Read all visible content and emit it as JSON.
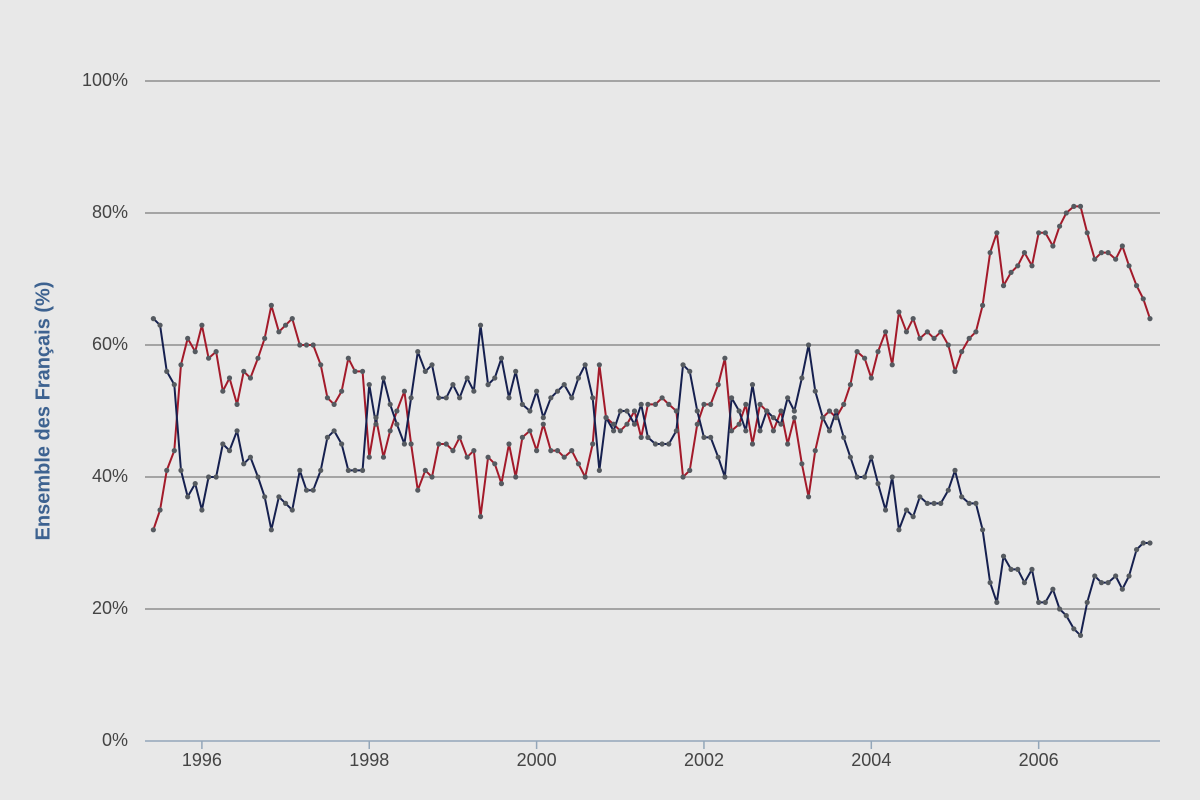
{
  "chart_data": {
    "type": "line",
    "ylabel": "Ensemble des Français (%)",
    "x": [
      1995.42,
      1995.5,
      1995.58,
      1995.67,
      1995.75,
      1995.83,
      1995.92,
      1996,
      1996.08,
      1996.17,
      1996.25,
      1996.33,
      1996.42,
      1996.5,
      1996.58,
      1996.67,
      1996.75,
      1996.83,
      1996.92,
      1997,
      1997.08,
      1997.17,
      1997.25,
      1997.33,
      1997.42,
      1997.5,
      1997.58,
      1997.67,
      1997.75,
      1997.83,
      1997.92,
      1998,
      1998.08,
      1998.17,
      1998.25,
      1998.33,
      1998.42,
      1998.5,
      1998.58,
      1998.67,
      1998.75,
      1998.83,
      1998.92,
      1999,
      1999.08,
      1999.17,
      1999.25,
      1999.33,
      1999.42,
      1999.5,
      1999.58,
      1999.67,
      1999.75,
      1999.83,
      1999.92,
      2000,
      2000.08,
      2000.17,
      2000.25,
      2000.33,
      2000.42,
      2000.5,
      2000.58,
      2000.67,
      2000.75,
      2000.83,
      2000.92,
      2001,
      2001.08,
      2001.17,
      2001.25,
      2001.33,
      2001.42,
      2001.5,
      2001.58,
      2001.67,
      2001.75,
      2001.83,
      2001.92,
      2002,
      2002.08,
      2002.17,
      2002.25,
      2002.33,
      2002.42,
      2002.5,
      2002.58,
      2002.67,
      2002.75,
      2002.83,
      2002.92,
      2003,
      2003.08,
      2003.17,
      2003.25,
      2003.33,
      2003.42,
      2003.5,
      2003.58,
      2003.67,
      2003.75,
      2003.83,
      2003.92,
      2004,
      2004.08,
      2004.17,
      2004.25,
      2004.33,
      2004.42,
      2004.5,
      2004.58,
      2004.67,
      2004.75,
      2004.83,
      2004.92,
      2005,
      2005.08,
      2005.17,
      2005.25,
      2005.33,
      2005.42,
      2005.5,
      2005.58,
      2005.67,
      2005.75,
      2005.83,
      2005.92,
      2006,
      2006.08,
      2006.17,
      2006.25,
      2006.33,
      2006.42,
      2006.5,
      2006.58,
      2006.67,
      2006.75,
      2006.83,
      2006.92,
      2007,
      2007.08,
      2007.17,
      2007.25,
      2007.33
    ],
    "series": [
      {
        "color": "#a31a2a",
        "values": [
          32,
          35,
          41,
          44,
          57,
          61,
          59,
          63,
          58,
          59,
          53,
          55,
          51,
          56,
          55,
          58,
          61,
          66,
          62,
          63,
          64,
          60,
          60,
          60,
          57,
          52,
          51,
          53,
          58,
          56,
          56,
          43,
          49,
          43,
          47,
          50,
          53,
          45,
          38,
          41,
          40,
          45,
          45,
          44,
          46,
          43,
          44,
          34,
          43,
          42,
          39,
          45,
          40,
          46,
          47,
          44,
          48,
          44,
          44,
          43,
          44,
          42,
          40,
          45,
          57,
          49,
          48,
          47,
          48,
          50,
          46,
          51,
          51,
          52,
          51,
          50,
          40,
          41,
          48,
          51,
          51,
          54,
          58,
          47,
          48,
          51,
          45,
          51,
          50,
          47,
          50,
          45,
          49,
          42,
          37,
          44,
          49,
          50,
          49,
          51,
          54,
          59,
          58,
          55,
          59,
          62,
          57,
          65,
          62,
          64,
          61,
          62,
          61,
          62,
          60,
          56,
          59,
          61,
          62,
          66,
          74,
          77,
          69,
          71,
          72,
          74,
          72,
          77,
          77,
          75,
          78,
          80,
          81,
          81,
          77,
          73,
          74,
          74,
          73,
          75,
          72,
          69,
          67,
          64
        ]
      },
      {
        "color": "#16204f",
        "values": [
          64,
          63,
          56,
          54,
          41,
          37,
          39,
          35,
          40,
          40,
          45,
          44,
          47,
          42,
          43,
          40,
          37,
          32,
          37,
          36,
          35,
          41,
          38,
          38,
          41,
          46,
          47,
          45,
          41,
          41,
          41,
          54,
          48,
          55,
          51,
          48,
          45,
          52,
          59,
          56,
          57,
          52,
          52,
          54,
          52,
          55,
          53,
          63,
          54,
          55,
          58,
          52,
          56,
          51,
          50,
          53,
          49,
          52,
          53,
          54,
          52,
          55,
          57,
          52,
          41,
          49,
          47,
          50,
          50,
          48,
          51,
          46,
          45,
          45,
          45,
          47,
          57,
          56,
          50,
          46,
          46,
          43,
          40,
          52,
          50,
          47,
          54,
          47,
          50,
          49,
          48,
          52,
          50,
          55,
          60,
          53,
          49,
          47,
          50,
          46,
          43,
          40,
          40,
          43,
          39,
          35,
          40,
          32,
          35,
          34,
          37,
          36,
          36,
          36,
          38,
          41,
          37,
          36,
          36,
          32,
          24,
          21,
          28,
          26,
          26,
          24,
          26,
          21,
          21,
          23,
          20,
          19,
          17,
          16,
          21,
          25,
          24,
          24,
          25,
          23,
          25,
          29,
          30,
          30
        ]
      }
    ],
    "marker_color": "#555a60",
    "xlim": [
      1995.32,
      2007.45
    ],
    "xticks": [
      1996,
      1998,
      2000,
      2002,
      2004,
      2006
    ],
    "ylim": [
      0,
      100
    ],
    "yticks": [
      {
        "value": 0,
        "label": "0%"
      },
      {
        "value": 20,
        "label": "20%"
      },
      {
        "value": 40,
        "label": "40%"
      },
      {
        "value": 60,
        "label": "60%"
      },
      {
        "value": 80,
        "label": "80%"
      },
      {
        "value": 100,
        "label": "100%"
      }
    ],
    "grid": true
  }
}
